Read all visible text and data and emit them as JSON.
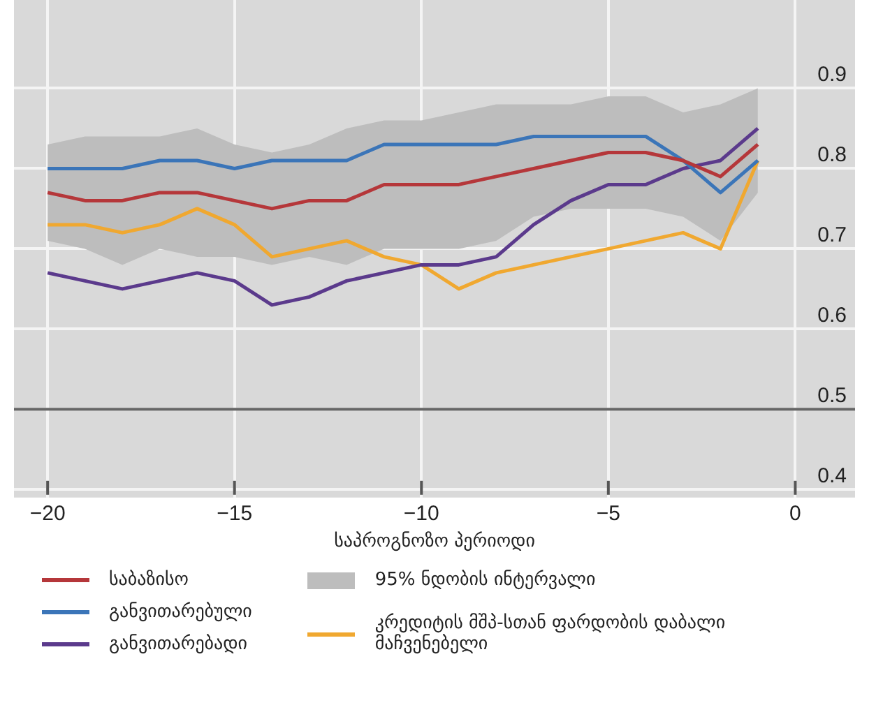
{
  "chart_data": {
    "type": "line",
    "xlabel": "საპროგნოზო პერიოდი",
    "x": [
      -20,
      -19,
      -18,
      -17,
      -16,
      -15,
      -14,
      -13,
      -12,
      -11,
      -10,
      -9,
      -8,
      -7,
      -6,
      -5,
      -4,
      -3,
      -2,
      -1
    ],
    "series": [
      {
        "name": "საბაზისო",
        "color": "#b5373a",
        "values": [
          0.77,
          0.76,
          0.76,
          0.77,
          0.77,
          0.76,
          0.75,
          0.76,
          0.76,
          0.78,
          0.78,
          0.78,
          0.79,
          0.8,
          0.81,
          0.82,
          0.82,
          0.81,
          0.79,
          0.83
        ]
      },
      {
        "name": "განვითარებული",
        "color": "#3b75b8",
        "values": [
          0.8,
          0.8,
          0.8,
          0.81,
          0.81,
          0.8,
          0.81,
          0.81,
          0.81,
          0.83,
          0.83,
          0.83,
          0.83,
          0.84,
          0.84,
          0.84,
          0.84,
          0.81,
          0.77,
          0.81
        ]
      },
      {
        "name": "განვითარებადი",
        "color": "#5b3a8c",
        "values": [
          0.67,
          0.66,
          0.65,
          0.66,
          0.67,
          0.66,
          0.63,
          0.64,
          0.66,
          0.67,
          0.68,
          0.68,
          0.69,
          0.73,
          0.76,
          0.78,
          0.78,
          0.8,
          0.81,
          0.85
        ]
      },
      {
        "name": "95% ნდობის ინტერვალი",
        "type": "area",
        "color": "#bdbdbd",
        "values": [
          null,
          null,
          null,
          null,
          null,
          null,
          null,
          null,
          null,
          null,
          null,
          null,
          null,
          null,
          null,
          null,
          null,
          null,
          null,
          null
        ],
        "lower": [
          0.71,
          0.7,
          0.68,
          0.7,
          0.69,
          0.69,
          0.68,
          0.69,
          0.68,
          0.7,
          0.7,
          0.7,
          0.71,
          0.74,
          0.75,
          0.75,
          0.75,
          0.74,
          0.71,
          0.77
        ],
        "upper": [
          0.83,
          0.84,
          0.84,
          0.84,
          0.85,
          0.83,
          0.82,
          0.83,
          0.85,
          0.86,
          0.86,
          0.87,
          0.88,
          0.88,
          0.88,
          0.89,
          0.89,
          0.87,
          0.88,
          0.9
        ]
      },
      {
        "name": "კრედიტის მშპ-სთან ფარდობის დაბალი მაჩვენებელი",
        "color": "#f0a830",
        "values": [
          0.73,
          0.73,
          0.72,
          0.73,
          0.75,
          0.73,
          0.69,
          0.7,
          0.71,
          0.69,
          0.68,
          0.65,
          0.67,
          0.68,
          0.69,
          0.7,
          0.71,
          0.72,
          0.7,
          0.81
        ]
      }
    ],
    "xlim": [
      -20.9,
      1.6
    ],
    "ylim": [
      0.39,
      1.01
    ],
    "xticks": [
      {
        "value": -20,
        "label": "−20"
      },
      {
        "value": -15,
        "label": "−15"
      },
      {
        "value": -10,
        "label": "−10"
      },
      {
        "value": -5,
        "label": "−5"
      },
      0
    ],
    "yticks": [
      0.4,
      0.5,
      0.6,
      0.7,
      0.8,
      0.9
    ],
    "ref_lines": [
      {
        "axis": "y",
        "value": 0.5,
        "color": "#666666"
      }
    ],
    "grid": true,
    "legend": "bottom",
    "marker": "none",
    "line_style": "solid"
  }
}
